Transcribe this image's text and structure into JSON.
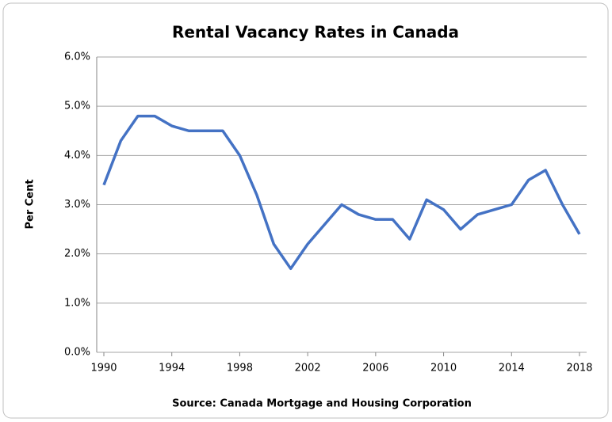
{
  "chart_data": {
    "type": "line",
    "title": "Rental Vacancy Rates in Canada",
    "y_label": "Per Cent",
    "x_label": "Source:  Canada Mortgage and Housing Corporation",
    "x": [
      1990,
      1991,
      1992,
      1993,
      1994,
      1995,
      1996,
      1997,
      1998,
      1999,
      2000,
      2001,
      2002,
      2003,
      2004,
      2005,
      2006,
      2007,
      2008,
      2009,
      2010,
      2011,
      2012,
      2013,
      2014,
      2015,
      2016,
      2017,
      2018
    ],
    "series": [
      {
        "name": "Rental vacancy rate",
        "color": "#4472c4",
        "values": [
          3.4,
          4.3,
          4.8,
          4.8,
          4.6,
          4.5,
          4.5,
          4.5,
          4.0,
          3.2,
          2.2,
          1.7,
          2.2,
          2.6,
          3.0,
          2.8,
          2.7,
          2.7,
          2.3,
          3.1,
          2.9,
          2.5,
          2.8,
          2.9,
          3.0,
          3.5,
          3.7,
          3.0,
          2.4
        ]
      }
    ],
    "xlim": [
      1990,
      2018
    ],
    "xticks": [
      1990,
      1994,
      1998,
      2002,
      2006,
      2010,
      2014,
      2018
    ],
    "ylim": [
      0,
      6
    ],
    "yticks": [
      {
        "value": 0,
        "label": "0.0%"
      },
      {
        "value": 1,
        "label": "1.0%"
      },
      {
        "value": 2,
        "label": "2.0%"
      },
      {
        "value": 3,
        "label": "3.0%"
      },
      {
        "value": 4,
        "label": "4.0%"
      },
      {
        "value": 5,
        "label": "5.0%"
      },
      {
        "value": 6,
        "label": "6.0%"
      }
    ],
    "grid": true
  }
}
